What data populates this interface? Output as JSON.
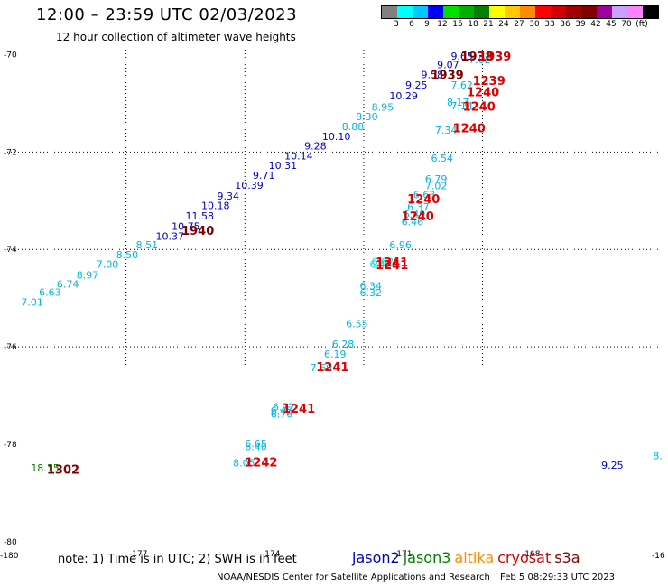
{
  "title": "12:00 – 23:59 UTC 02/03/2023",
  "subtitle": "12 hour collection of altimeter wave heights",
  "legend": {
    "colors": [
      "#808080",
      "#00ffff",
      "#00c8ff",
      "#0000ff",
      "#00e000",
      "#00b000",
      "#008000",
      "#ffff00",
      "#ffc800",
      "#ff8c00",
      "#ff0000",
      "#d00000",
      "#a00000",
      "#800000",
      "#a000a0",
      "#c8a0ff",
      "#ff80ff",
      "#000000"
    ],
    "labels": [
      "3",
      "6",
      "9",
      "12",
      "15",
      "18",
      "21",
      "24",
      "27",
      "30",
      "33",
      "36",
      "39",
      "42",
      "45",
      "70",
      "(ft)"
    ]
  },
  "note": {
    "prefix": "note:",
    "part1": "1) Time is in UTC;",
    "part2": "2) SWH is in feet"
  },
  "satellites": [
    {
      "name": "jason2",
      "color": "#0000c8"
    },
    {
      "name": "jason3",
      "color": "#008000"
    },
    {
      "name": "altika",
      "color": "#ff8c00"
    },
    {
      "name": "cryosat",
      "color": "#d00000"
    },
    {
      "name": "s3a",
      "color": "#800000"
    }
  ],
  "credit": {
    "org": "NOAA/NESDIS Center for Satellite Applications and Research",
    "timestamp": "Feb  5 08:29:33 UTC 2023"
  },
  "axes": {
    "lat_labels": [
      "-70",
      "-72",
      "-74",
      "-76",
      "-78",
      "-80"
    ],
    "lon_labels": [
      "-180",
      "-177",
      "-174",
      "-171",
      "-168",
      "-16"
    ]
  },
  "observations": [
    {
      "lon": -179.65,
      "lat": -75.15,
      "value": "7.01",
      "color": "#00b8e0"
    },
    {
      "lon": -179.2,
      "lat": -74.95,
      "value": "6.63",
      "color": "#00b8e0"
    },
    {
      "lon": -178.75,
      "lat": -74.78,
      "value": "6.74",
      "color": "#00b8e0"
    },
    {
      "lon": -178.25,
      "lat": -74.6,
      "value": "8.97",
      "color": "#00b8e0"
    },
    {
      "lon": -177.75,
      "lat": -74.38,
      "value": "7.00",
      "color": "#00b8e0"
    },
    {
      "lon": -177.25,
      "lat": -74.18,
      "value": "8.50",
      "color": "#00b8e0"
    },
    {
      "lon": -176.75,
      "lat": -73.98,
      "value": "8.51",
      "color": "#00b8e0"
    },
    {
      "lon": -176.25,
      "lat": -73.8,
      "value": "10.37",
      "color": "#0000c8"
    },
    {
      "lon": -175.85,
      "lat": -73.6,
      "value": "10.75",
      "color": "#0000c8"
    },
    {
      "lon": -175.5,
      "lat": -73.38,
      "value": "11.58",
      "color": "#0000c8"
    },
    {
      "lon": -175.1,
      "lat": -73.17,
      "value": "10.18",
      "color": "#0000c8"
    },
    {
      "lon": -174.7,
      "lat": -72.98,
      "value": "9.34",
      "color": "#0000c8"
    },
    {
      "lon": -174.25,
      "lat": -72.75,
      "value": "10.39",
      "color": "#0000c8"
    },
    {
      "lon": -173.8,
      "lat": -72.55,
      "value": "9.71",
      "color": "#0000c8"
    },
    {
      "lon": -173.4,
      "lat": -72.35,
      "value": "10.31",
      "color": "#0000c8"
    },
    {
      "lon": -173.0,
      "lat": -72.15,
      "value": "10.14",
      "color": "#0000c8"
    },
    {
      "lon": -172.5,
      "lat": -71.95,
      "value": "9.28",
      "color": "#0000c8"
    },
    {
      "lon": -172.05,
      "lat": -71.75,
      "value": "10.10",
      "color": "#0000c8"
    },
    {
      "lon": -171.55,
      "lat": -71.55,
      "value": "8.88",
      "color": "#00b8e0"
    },
    {
      "lon": -171.2,
      "lat": -71.35,
      "value": "8.30",
      "color": "#00b8e0"
    },
    {
      "lon": -170.8,
      "lat": -71.15,
      "value": "8.95",
      "color": "#00b8e0"
    },
    {
      "lon": -170.35,
      "lat": -70.92,
      "value": "10.29",
      "color": "#0000c8"
    },
    {
      "lon": -169.95,
      "lat": -70.7,
      "value": "9.25",
      "color": "#0000c8"
    },
    {
      "lon": -169.55,
      "lat": -70.48,
      "value": "9.58",
      "color": "#0000c8"
    },
    {
      "lon": -169.15,
      "lat": -70.28,
      "value": "9.07",
      "color": "#0000c8"
    },
    {
      "lon": -168.8,
      "lat": -70.1,
      "value": "9.65",
      "color": "#0000c8"
    },
    {
      "lon": -168.35,
      "lat": -70.18,
      "value": "7.62",
      "color": "#00b8e0"
    },
    {
      "lon": -168.8,
      "lat": -70.7,
      "value": "7.62",
      "color": "#00b8e0"
    },
    {
      "lon": -168.9,
      "lat": -71.05,
      "value": "8.17",
      "color": "#00b8e0"
    },
    {
      "lon": -168.8,
      "lat": -71.12,
      "value": "7.14",
      "color": "#00b8e0"
    },
    {
      "lon": -169.2,
      "lat": -71.62,
      "value": "7.34",
      "color": "#00b8e0"
    },
    {
      "lon": -169.3,
      "lat": -72.2,
      "value": "6.54",
      "color": "#00b8e0"
    },
    {
      "lon": -169.45,
      "lat": -72.62,
      "value": "6.79",
      "color": "#00b8e0"
    },
    {
      "lon": -169.45,
      "lat": -72.76,
      "value": "7.02",
      "color": "#00b8e0"
    },
    {
      "lon": -169.75,
      "lat": -72.95,
      "value": "6.63",
      "color": "#00b8e0"
    },
    {
      "lon": -169.9,
      "lat": -73.2,
      "value": "6.37",
      "color": "#00b8e0"
    },
    {
      "lon": -170.0,
      "lat": -73.35,
      "value": "6.49",
      "color": "#00b8e0"
    },
    {
      "lon": -170.05,
      "lat": -73.5,
      "value": "6.46",
      "color": "#00b8e0"
    },
    {
      "lon": -170.35,
      "lat": -73.98,
      "value": "6.96",
      "color": "#00b8e0"
    },
    {
      "lon": -170.8,
      "lat": -74.32,
      "value": "6.62",
      "color": "#00e8e8"
    },
    {
      "lon": -170.85,
      "lat": -74.38,
      "value": "6.43",
      "color": "#00e8e8"
    },
    {
      "lon": -171.1,
      "lat": -74.82,
      "value": "6.34",
      "color": "#00b8e0"
    },
    {
      "lon": -171.1,
      "lat": -74.96,
      "value": "6.32",
      "color": "#00b8e0"
    },
    {
      "lon": -171.45,
      "lat": -75.6,
      "value": "6.55",
      "color": "#00b8e0"
    },
    {
      "lon": -171.8,
      "lat": -76.02,
      "value": "6.28",
      "color": "#00b8e0"
    },
    {
      "lon": -172.0,
      "lat": -76.22,
      "value": "6.19",
      "color": "#00b8e0"
    },
    {
      "lon": -172.35,
      "lat": -76.5,
      "value": "7.69",
      "color": "#00b8e0"
    },
    {
      "lon": -173.3,
      "lat": -77.3,
      "value": "6.72",
      "color": "#00b8e0"
    },
    {
      "lon": -173.35,
      "lat": -77.38,
      "value": "6.45",
      "color": "#00b8e0"
    },
    {
      "lon": -173.35,
      "lat": -77.45,
      "value": "6.76",
      "color": "#00b8e0"
    },
    {
      "lon": -174.0,
      "lat": -78.05,
      "value": "6.65",
      "color": "#00b8e0"
    },
    {
      "lon": -174.0,
      "lat": -78.12,
      "value": "6.40",
      "color": "#00b8e0"
    },
    {
      "lon": -174.3,
      "lat": -78.45,
      "value": "8.05",
      "color": "#00b8e0"
    },
    {
      "lon": -179.4,
      "lat": -78.55,
      "value": "18.15",
      "color": "#008000"
    },
    {
      "lon": -165.0,
      "lat": -78.5,
      "value": "9.25",
      "color": "#0000c8"
    },
    {
      "lon": -163.7,
      "lat": -78.3,
      "value": "8.",
      "color": "#00b8e0"
    }
  ],
  "time_labels": [
    {
      "lon": -175.6,
      "lat": -73.7,
      "value": "1940",
      "color": "#800000"
    },
    {
      "lon": -168.55,
      "lat": -70.12,
      "value": "1938",
      "color": "#800000"
    },
    {
      "lon": -168.1,
      "lat": -70.12,
      "value": "1939",
      "color": "#d00000"
    },
    {
      "lon": -169.3,
      "lat": -70.5,
      "value": "1939",
      "color": "#800000"
    },
    {
      "lon": -168.25,
      "lat": -70.62,
      "value": "1239",
      "color": "#e00000"
    },
    {
      "lon": -168.4,
      "lat": -70.85,
      "value": "1240",
      "color": "#e00000"
    },
    {
      "lon": -168.5,
      "lat": -71.15,
      "value": "1240",
      "color": "#e00000"
    },
    {
      "lon": -168.75,
      "lat": -71.6,
      "value": "1240",
      "color": "#e00000"
    },
    {
      "lon": -169.9,
      "lat": -73.05,
      "value": "1240",
      "color": "#e00000"
    },
    {
      "lon": -170.05,
      "lat": -73.4,
      "value": "1240",
      "color": "#e00000"
    },
    {
      "lon": -170.7,
      "lat": -74.35,
      "value": "1241",
      "color": "#e00000"
    },
    {
      "lon": -170.7,
      "lat": -74.4,
      "value": "1241",
      "color": "#e00000"
    },
    {
      "lon": -172.2,
      "lat": -76.5,
      "value": "1241",
      "color": "#e00000"
    },
    {
      "lon": -173.05,
      "lat": -77.35,
      "value": "1241",
      "color": "#e00000"
    },
    {
      "lon": -174.0,
      "lat": -78.45,
      "value": "1242",
      "color": "#e00000"
    },
    {
      "lon": -179.0,
      "lat": -78.6,
      "value": "1302",
      "color": "#800000"
    }
  ],
  "corner_labels": [
    {
      "lon": -177.3,
      "value": "-177"
    },
    {
      "lon": -174.3,
      "value": "-174"
    },
    {
      "lon": -171.3,
      "value": "-171"
    },
    {
      "lon": -168.3,
      "value": "-168"
    }
  ]
}
